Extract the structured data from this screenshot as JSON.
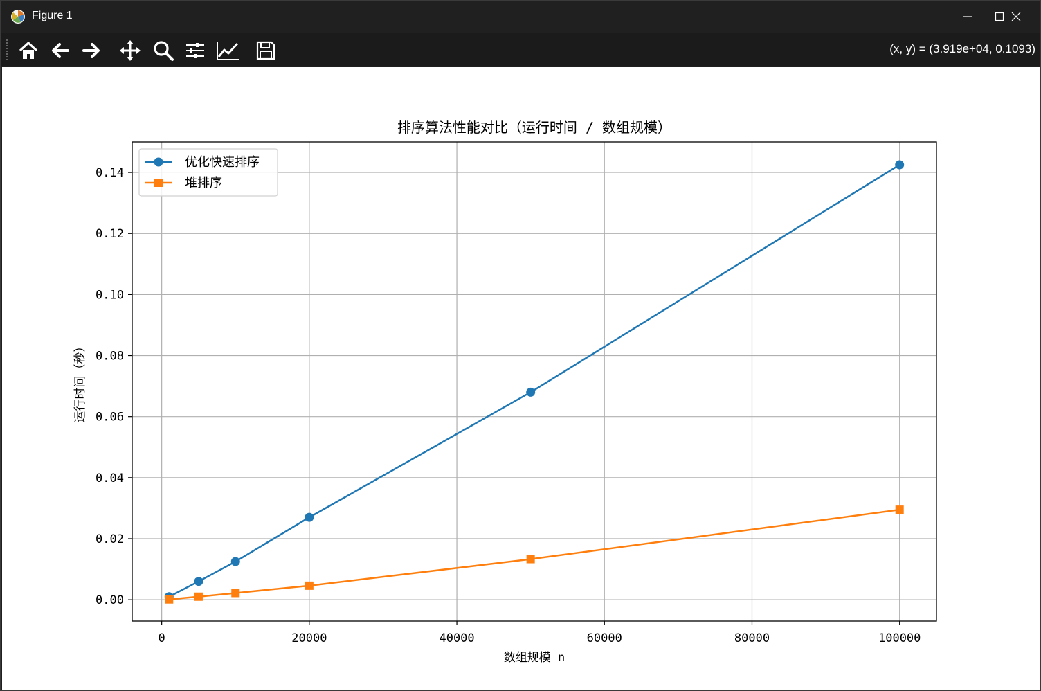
{
  "window": {
    "title": "Figure 1",
    "controls": {
      "minimize": "minimize",
      "maximize": "maximize",
      "close": "close"
    }
  },
  "toolbar": {
    "tools": [
      {
        "name": "home-icon"
      },
      {
        "name": "back-arrow-icon"
      },
      {
        "name": "forward-arrow-icon"
      },
      {
        "name": "pan-icon"
      },
      {
        "name": "zoom-icon"
      },
      {
        "name": "configure-subplots-icon"
      },
      {
        "name": "edit-axis-icon"
      },
      {
        "name": "save-icon"
      }
    ],
    "coordinates": "(x, y) = (3.919e+04, 0.1093)"
  },
  "chart_data": {
    "type": "line",
    "title": "排序算法性能对比（运行时间 / 数组规模）",
    "xlabel": "数组规模 n",
    "ylabel": "运行时间（秒）",
    "xlim": [
      -4000,
      105000
    ],
    "ylim": [
      -0.007,
      0.15
    ],
    "xticks": [
      0,
      20000,
      40000,
      60000,
      80000,
      100000
    ],
    "xtick_labels": [
      "0",
      "20000",
      "40000",
      "60000",
      "80000",
      "100000"
    ],
    "yticks": [
      0.0,
      0.02,
      0.04,
      0.06,
      0.08,
      0.1,
      0.12,
      0.14
    ],
    "ytick_labels": [
      "0.00",
      "0.02",
      "0.04",
      "0.06",
      "0.08",
      "0.10",
      "0.12",
      "0.14"
    ],
    "grid": true,
    "legend_position": "upper-left",
    "x": [
      1000,
      5000,
      10000,
      20000,
      50000,
      100000
    ],
    "series": [
      {
        "name": "优化快速排序",
        "color": "#1f77b4",
        "marker": "circle",
        "values": [
          0.001,
          0.006,
          0.0125,
          0.027,
          0.068,
          0.1425
        ]
      },
      {
        "name": "堆排序",
        "color": "#ff7f0e",
        "marker": "square",
        "values": [
          0.0001,
          0.001,
          0.0022,
          0.0046,
          0.0133,
          0.0295
        ]
      }
    ]
  }
}
